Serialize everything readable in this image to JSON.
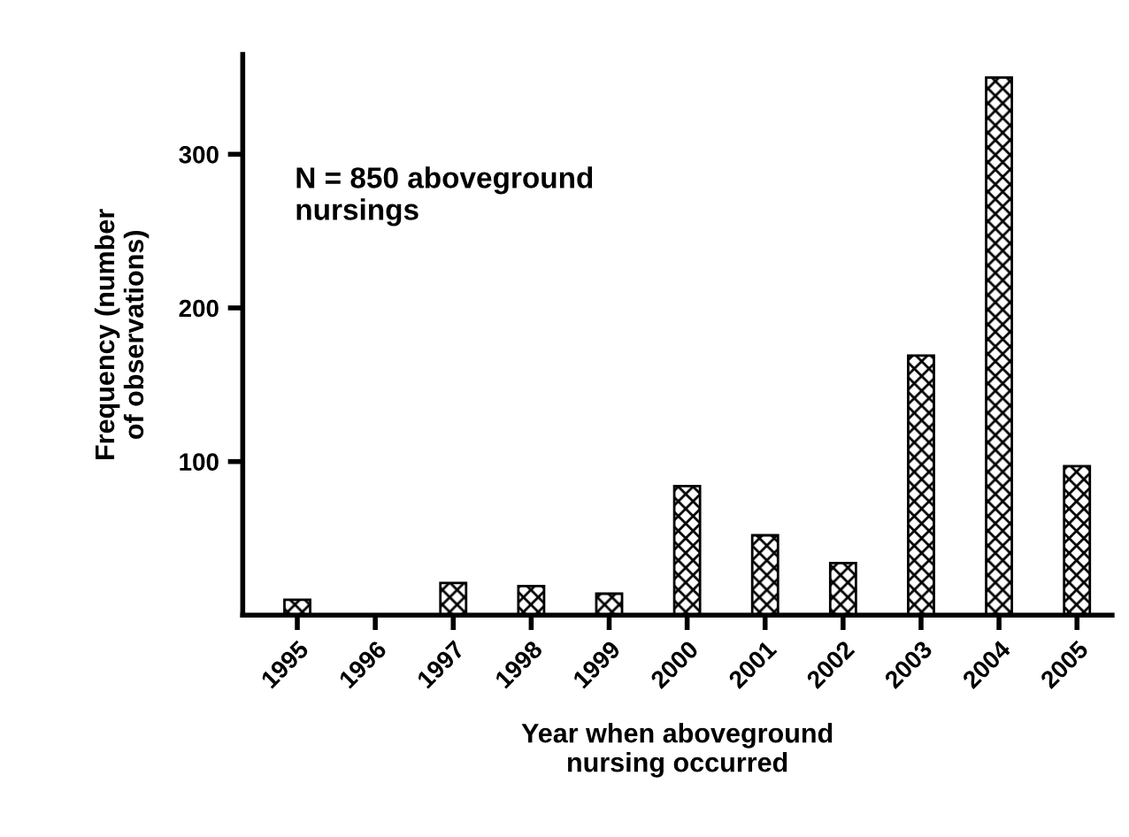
{
  "chart_data": {
    "type": "bar",
    "xlabel": "Year when aboveground\nnursing occurred",
    "ylabel": "Frequency (number\nof observations)",
    "annotations": [
      "N = 850 aboveground\nnursings"
    ],
    "categories": [
      "1995",
      "1996",
      "1997",
      "1998",
      "1999",
      "2000",
      "2001",
      "2002",
      "2003",
      "2004",
      "2005"
    ],
    "values": [
      10,
      0,
      21,
      19,
      14,
      84,
      52,
      34,
      169,
      350,
      97
    ],
    "color": "#000000",
    "ylim": [
      0,
      365
    ],
    "yticks": [
      100,
      200,
      300
    ],
    "grid": false,
    "legend": false
  }
}
